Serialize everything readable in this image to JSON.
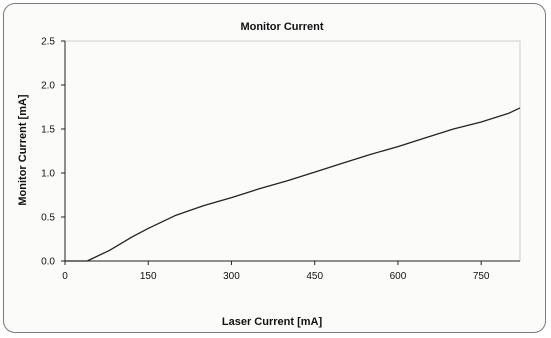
{
  "chart_data": {
    "type": "line",
    "title": "Monitor Current",
    "xlabel": "Laser Current [mA]",
    "ylabel": "Monitor Current [mA]",
    "xlim": [
      0,
      820
    ],
    "ylim": [
      0,
      2.5
    ],
    "xticks": [
      0,
      150,
      300,
      450,
      600,
      750
    ],
    "xtick_labels": [
      "0",
      "150",
      "300",
      "450",
      "600",
      "750"
    ],
    "yticks": [
      0,
      0.5,
      1.0,
      1.5,
      2.0,
      2.5
    ],
    "ytick_labels": [
      "0.0",
      "0.5",
      "1.0",
      "1.5",
      "2.0",
      "2.5"
    ],
    "grid": false,
    "series": [
      {
        "color": "#222222",
        "x": [
          0,
          40,
          80,
          120,
          150,
          200,
          250,
          300,
          350,
          400,
          450,
          500,
          550,
          600,
          650,
          700,
          750,
          800,
          820
        ],
        "y": [
          0,
          0,
          0.12,
          0.27,
          0.37,
          0.52,
          0.63,
          0.72,
          0.82,
          0.91,
          1.01,
          1.11,
          1.21,
          1.3,
          1.4,
          1.5,
          1.58,
          1.68,
          1.74
        ]
      }
    ]
  }
}
